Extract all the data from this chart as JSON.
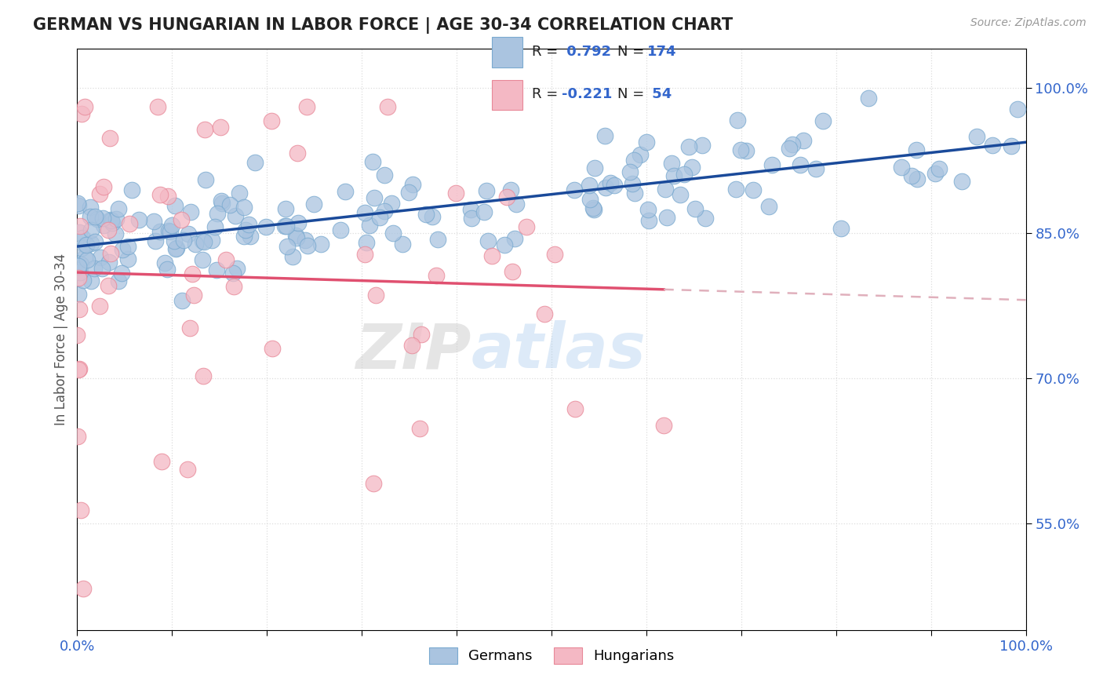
{
  "title": "GERMAN VS HUNGARIAN IN LABOR FORCE | AGE 30-34 CORRELATION CHART",
  "source_text": "Source: ZipAtlas.com",
  "ylabel": "In Labor Force | Age 30-34",
  "x_min": 0.0,
  "x_max": 1.0,
  "y_min": 0.44,
  "y_max": 1.04,
  "y_tick_labels": [
    "55.0%",
    "70.0%",
    "85.0%",
    "100.0%"
  ],
  "y_tick_values": [
    0.55,
    0.7,
    0.85,
    1.0
  ],
  "german_R": 0.792,
  "german_N": 174,
  "hungarian_R": -0.221,
  "hungarian_N": 54,
  "german_color": "#aac4e0",
  "german_edge_color": "#7aaad0",
  "hungarian_color": "#f4b8c4",
  "hungarian_edge_color": "#e88898",
  "german_line_color": "#1a4a9a",
  "hungarian_line_color": "#e05070",
  "hungarian_dash_color": "#e0b0bc",
  "watermark_zip": "ZIP",
  "watermark_atlas": "atlas",
  "legend_german_label": "Germans",
  "legend_hungarian_label": "Hungarians",
  "background_color": "#ffffff",
  "grid_color": "#dddddd",
  "title_color": "#222222",
  "axis_tick_color": "#3366cc",
  "legend_R_color": "#222222",
  "legend_N_color": "#3366cc",
  "german_scatter_seed": 42,
  "hungarian_scatter_seed": 99
}
